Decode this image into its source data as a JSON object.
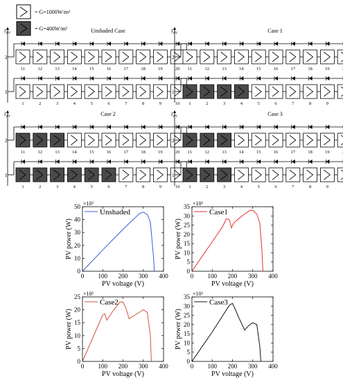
{
  "legend": {
    "unshaded_label": "= G=1000W/m²",
    "shaded_label": "= G=400W/m²"
  },
  "array_common": {
    "current_label": "I",
    "current_sub": "PV",
    "string_labels": [
      "2",
      "1"
    ],
    "top_string_numbers": [
      "11",
      "12",
      "13",
      "14",
      "15",
      "16",
      "17",
      "18",
      "19",
      "20"
    ],
    "bottom_string_numbers": [
      "1",
      "2",
      "3",
      "4",
      "5",
      "6",
      "7",
      "8",
      "9",
      "10"
    ]
  },
  "colors": {
    "shaded_fill": "#4a4a4a",
    "unshaded_fill": "#ffffff",
    "unshaded_line": "#3b5bdb",
    "case1_line": "#e03131",
    "case2_line": "#c8553d",
    "case3_line": "#111111"
  },
  "cases": [
    {
      "title": "Unshaded Case",
      "shaded_top": [],
      "shaded_bottom": []
    },
    {
      "title": "Case 1",
      "shaded_top": [],
      "shaded_bottom": [
        1,
        2,
        3,
        4
      ]
    },
    {
      "title": "Case 2",
      "shaded_top": [
        11,
        12,
        13
      ],
      "shaded_bottom": [
        1,
        2,
        3,
        4,
        5,
        6
      ]
    },
    {
      "title": "Case 3",
      "shaded_top": [
        11,
        12,
        13
      ],
      "shaded_bottom": [
        1,
        2,
        3
      ]
    }
  ],
  "chart_data": [
    {
      "type": "line",
      "legend": "Unshaded",
      "xlabel": "PV voltage (V)",
      "ylabel": "PV power (W)",
      "yexp": "×10²",
      "xlim": [
        0,
        400
      ],
      "ylim": [
        0,
        50
      ],
      "xticks": [
        "0",
        "100",
        "200",
        "300",
        "400"
      ],
      "yticks": [
        "0",
        "10",
        "20",
        "30",
        "40",
        "50"
      ],
      "x": [
        0,
        50,
        100,
        150,
        200,
        250,
        280,
        300,
        320,
        335,
        350,
        355
      ],
      "y": [
        0,
        8.2,
        16.5,
        24.5,
        32.5,
        40,
        44.5,
        45.8,
        44,
        38,
        12,
        0
      ]
    },
    {
      "type": "line",
      "legend": "Case1",
      "xlabel": "PV voltage (V)",
      "ylabel": "PV power (W)",
      "yexp": "×10²",
      "xlim": [
        0,
        400
      ],
      "ylim": [
        0,
        35
      ],
      "xticks": [
        "0",
        "100",
        "200",
        "300",
        "400"
      ],
      "yticks": [
        "0",
        "5",
        "10",
        "15",
        "20",
        "25",
        "30",
        "35"
      ],
      "x": [
        0,
        50,
        100,
        150,
        170,
        185,
        195,
        205,
        230,
        260,
        285,
        300,
        320,
        335,
        345,
        350
      ],
      "y": [
        0,
        8,
        16,
        24,
        28.5,
        28,
        23.5,
        26,
        28.5,
        31,
        33,
        33,
        31,
        26,
        12,
        0
      ]
    },
    {
      "type": "line",
      "legend": "Case2",
      "xlabel": "PV voltage (V)",
      "ylabel": "PV power (W)",
      "yexp": "×10²",
      "xlim": [
        0,
        400
      ],
      "ylim": [
        0,
        25
      ],
      "xticks": [
        "0",
        "100",
        "200",
        "300",
        "400"
      ],
      "yticks": [
        "0",
        "5",
        "10",
        "15",
        "20",
        "25"
      ],
      "x": [
        0,
        50,
        100,
        110,
        120,
        150,
        185,
        200,
        215,
        230,
        260,
        290,
        300,
        320,
        335,
        340
      ],
      "y": [
        0,
        9,
        18,
        18.5,
        16,
        19.5,
        23,
        23,
        20.5,
        16.5,
        18,
        19.5,
        20,
        19,
        10,
        0
      ]
    },
    {
      "type": "line",
      "legend": "Case3",
      "xlabel": "PV voltage (V)",
      "ylabel": "PV power (W)",
      "yexp": "×10²",
      "xlim": [
        0,
        400
      ],
      "ylim": [
        0,
        35
      ],
      "xticks": [
        "0",
        "100",
        "200",
        "300",
        "400"
      ],
      "yticks": [
        "0",
        "5",
        "10",
        "15",
        "20",
        "25",
        "30",
        "35"
      ],
      "x": [
        0,
        50,
        100,
        150,
        185,
        200,
        215,
        230,
        260,
        280,
        300,
        320,
        335,
        340
      ],
      "y": [
        0,
        8,
        16,
        24.5,
        30.5,
        31.5,
        28,
        24,
        17,
        19.5,
        21,
        20,
        8,
        0
      ]
    }
  ]
}
